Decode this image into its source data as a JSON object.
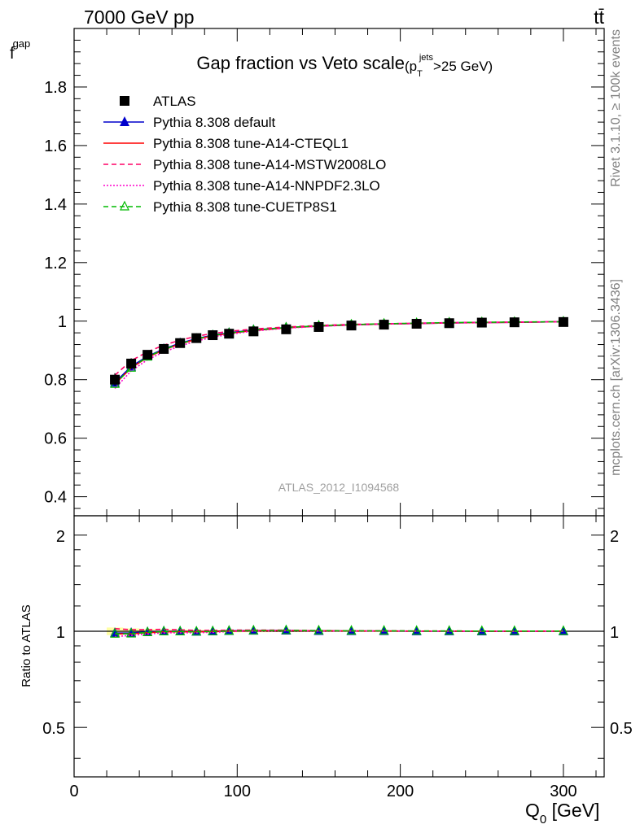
{
  "header": {
    "energy_label": "7000 GeV pp",
    "process_label": "tt̄"
  },
  "side_labels": {
    "rivet": "Rivet 3.1.10, ≥ 100k events",
    "source": "mcplots.cern.ch [arXiv:1306.3436]"
  },
  "watermark": "ATLAS_2012_I1094568",
  "chart_data": [
    {
      "type": "line",
      "title": "Gap fraction vs Veto scale",
      "title_cut": {
        "prefix": "(p",
        "sub": "T",
        "sup": "jets",
        "suffix": ">25 GeV)"
      },
      "ylabel": {
        "main": "f",
        "sub": "gap"
      },
      "xlabel": {
        "main": "Q",
        "sub": "0",
        "unit": " [GeV]"
      },
      "xlim": [
        0,
        325
      ],
      "ylim": [
        0.335,
        2.0
      ],
      "x_ticks": [
        0,
        100,
        200,
        300
      ],
      "x_tick_labels": [
        "0",
        "100",
        "200",
        "300"
      ],
      "y_ticks": [
        0.4,
        0.6,
        0.8,
        1.0,
        1.2,
        1.4,
        1.6,
        1.8
      ],
      "y_tick_labels": [
        "0.4",
        "0.6",
        "0.8",
        "1",
        "1.2",
        "1.4",
        "1.6",
        "1.8"
      ],
      "legend_position": "top-left",
      "x": [
        25,
        35,
        45,
        55,
        65,
        75,
        85,
        95,
        110,
        130,
        150,
        170,
        190,
        210,
        230,
        250,
        270,
        300
      ],
      "series": [
        {
          "name": "ATLAS",
          "color": "#000000",
          "marker": "square",
          "dash": "none",
          "values": [
            0.8,
            0.855,
            0.885,
            0.905,
            0.925,
            0.942,
            0.952,
            0.957,
            0.965,
            0.972,
            0.98,
            0.985,
            0.988,
            0.991,
            0.993,
            0.995,
            0.996,
            0.997
          ],
          "errors": [
            0.022,
            0.018,
            0.015,
            0.013,
            0.012,
            0.01,
            0.009,
            0.008,
            0.007,
            0.006,
            0.005,
            0.004,
            0.004,
            0.003,
            0.003,
            0.002,
            0.002,
            0.002
          ]
        },
        {
          "name": "Pythia 8.308 default",
          "color": "#0000cc",
          "marker": "triangle",
          "dash": "none",
          "values": [
            0.79,
            0.845,
            0.88,
            0.905,
            0.925,
            0.94,
            0.952,
            0.96,
            0.97,
            0.978,
            0.983,
            0.987,
            0.99,
            0.992,
            0.994,
            0.995,
            0.996,
            0.998
          ]
        },
        {
          "name": "Pythia 8.308 tune-A14-CTEQL1",
          "color": "#ff0000",
          "marker": "none",
          "dash": "none",
          "values": [
            0.785,
            0.84,
            0.876,
            0.902,
            0.922,
            0.938,
            0.95,
            0.958,
            0.968,
            0.977,
            0.983,
            0.987,
            0.99,
            0.992,
            0.994,
            0.995,
            0.996,
            0.998
          ]
        },
        {
          "name": "Pythia 8.308 tune-A14-MSTW2008LO",
          "color": "#ff0066",
          "marker": "none",
          "dash": "dashed",
          "values": [
            0.815,
            0.865,
            0.895,
            0.918,
            0.935,
            0.948,
            0.958,
            0.965,
            0.973,
            0.98,
            0.985,
            0.989,
            0.991,
            0.993,
            0.995,
            0.996,
            0.997,
            0.998
          ]
        },
        {
          "name": "Pythia 8.308 tune-A14-NNPDF2.3LO",
          "color": "#ff00cc",
          "marker": "none",
          "dash": "dotted",
          "values": [
            0.77,
            0.83,
            0.868,
            0.895,
            0.915,
            0.932,
            0.945,
            0.955,
            0.966,
            0.976,
            0.982,
            0.987,
            0.99,
            0.992,
            0.994,
            0.995,
            0.996,
            0.998
          ]
        },
        {
          "name": "Pythia 8.308 tune-CUETP8S1",
          "color": "#00bb00",
          "marker": "open-triangle",
          "dash": "dashed",
          "values": [
            0.785,
            0.84,
            0.878,
            0.903,
            0.923,
            0.939,
            0.951,
            0.959,
            0.969,
            0.978,
            0.984,
            0.988,
            0.991,
            0.993,
            0.995,
            0.996,
            0.997,
            0.998
          ]
        }
      ]
    },
    {
      "type": "line",
      "ylabel": "Ratio to ATLAS",
      "scale": "log",
      "xlim": [
        0,
        325
      ],
      "ylim": [
        0.35,
        2.3
      ],
      "y_ticks": [
        0.5,
        1,
        2
      ],
      "y_tick_labels": [
        "0.5",
        "1",
        "2"
      ],
      "reference_line": 1,
      "note": "ratio of each Pythia series to ATLAS; band = ATLAS relative uncertainty"
    }
  ]
}
